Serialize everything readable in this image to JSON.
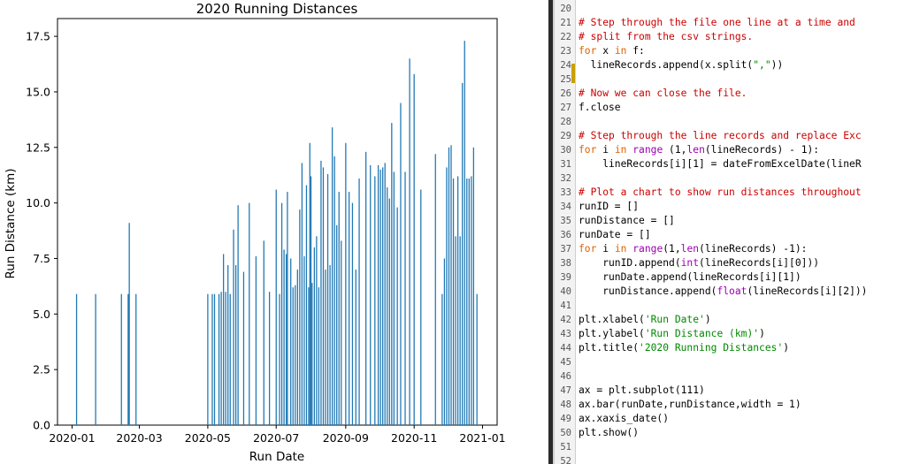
{
  "chart_data": {
    "type": "bar",
    "title": "2020 Running Distances",
    "xlabel": "Run Date",
    "ylabel": "Run Distance (km)",
    "xlim": [
      "2019-12-19",
      "2021-01-14"
    ],
    "ylim": [
      0,
      18.3
    ],
    "x_ticks": [
      "2020-01",
      "2020-03",
      "2020-05",
      "2020-07",
      "2020-09",
      "2020-11",
      "2021-01"
    ],
    "y_ticks": [
      "0.0",
      "2.5",
      "5.0",
      "7.5",
      "10.0",
      "12.5",
      "15.0",
      "17.5"
    ],
    "bar_color": "#1f77b4",
    "grid": false,
    "series": [
      {
        "x": [
          "2020-01-05",
          "2020-01-22",
          "2020-02-14",
          "2020-02-20",
          "2020-02-21",
          "2020-02-27",
          "2020-05-01",
          "2020-05-05",
          "2020-05-07",
          "2020-05-11",
          "2020-05-13",
          "2020-05-15",
          "2020-05-17",
          "2020-05-19",
          "2020-05-21",
          "2020-05-24",
          "2020-05-26",
          "2020-05-28",
          "2020-06-02",
          "2020-06-07",
          "2020-06-13",
          "2020-06-20",
          "2020-06-25",
          "2020-07-01",
          "2020-07-04",
          "2020-07-06",
          "2020-07-08",
          "2020-07-10",
          "2020-07-11",
          "2020-07-14",
          "2020-07-16",
          "2020-07-18",
          "2020-07-20",
          "2020-07-22",
          "2020-07-24",
          "2020-07-26",
          "2020-07-28",
          "2020-07-30",
          "2020-07-31",
          "2020-08-01",
          "2020-08-02",
          "2020-08-04",
          "2020-08-06",
          "2020-08-08",
          "2020-08-10",
          "2020-08-12",
          "2020-08-14",
          "2020-08-16",
          "2020-08-18",
          "2020-08-20",
          "2020-08-22",
          "2020-08-24",
          "2020-08-26",
          "2020-08-28",
          "2020-09-01",
          "2020-09-04",
          "2020-09-07",
          "2020-09-10",
          "2020-09-13",
          "2020-09-19",
          "2020-09-23",
          "2020-09-27",
          "2020-09-30",
          "2020-10-02",
          "2020-10-04",
          "2020-10-06",
          "2020-10-08",
          "2020-10-10",
          "2020-10-12",
          "2020-10-14",
          "2020-10-17",
          "2020-10-20",
          "2020-10-24",
          "2020-10-28",
          "2020-11-01",
          "2020-11-07",
          "2020-11-20",
          "2020-11-26",
          "2020-11-28",
          "2020-11-30",
          "2020-12-02",
          "2020-12-04",
          "2020-12-06",
          "2020-12-08",
          "2020-12-10",
          "2020-12-12",
          "2020-12-14",
          "2020-12-16",
          "2020-12-18",
          "2020-12-20",
          "2020-12-22",
          "2020-12-24",
          "2020-12-27"
        ],
        "values": [
          5.9,
          5.9,
          5.9,
          5.9,
          9.1,
          5.9,
          5.9,
          5.9,
          5.9,
          5.9,
          6.0,
          7.7,
          6.0,
          7.2,
          5.9,
          8.8,
          7.2,
          9.9,
          6.9,
          10.0,
          7.6,
          8.3,
          6.0,
          10.6,
          5.9,
          10.0,
          7.9,
          7.7,
          10.5,
          7.5,
          6.2,
          6.3,
          7.0,
          9.7,
          11.8,
          7.6,
          10.8,
          6.2,
          12.7,
          11.2,
          6.4,
          8.0,
          8.5,
          6.2,
          11.9,
          11.6,
          7.0,
          11.3,
          7.2,
          13.4,
          12.1,
          9.0,
          10.5,
          8.3,
          12.7,
          10.5,
          10.0,
          7.0,
          11.1,
          12.3,
          11.7,
          11.2,
          11.7,
          11.5,
          11.6,
          11.8,
          10.7,
          10.2,
          13.6,
          11.4,
          9.8,
          14.5,
          11.4,
          16.5,
          15.8,
          10.6,
          12.2,
          5.9,
          7.5,
          11.6,
          12.5,
          12.6,
          11.1,
          8.5,
          11.2,
          8.5,
          15.4,
          17.3,
          11.1,
          11.1,
          11.2,
          12.5,
          5.9
        ]
      }
    ]
  },
  "editor": {
    "lines": [
      {
        "n": "20",
        "tokens": []
      },
      {
        "n": "21",
        "tokens": [
          {
            "t": "# Step through the file one line at a time and",
            "c": "comment"
          }
        ]
      },
      {
        "n": "22",
        "tokens": [
          {
            "t": "# split from the csv strings.",
            "c": "comment"
          }
        ]
      },
      {
        "n": "23",
        "tokens": [
          {
            "t": "for",
            "c": "keyword"
          },
          {
            "t": " x "
          },
          {
            "t": "in",
            "c": "keyword"
          },
          {
            "t": " f:"
          }
        ]
      },
      {
        "n": "24",
        "tokens": [
          {
            "t": "  lineRecords.append(x.split("
          },
          {
            "t": "\",\"",
            "c": "string"
          },
          {
            "t": "))"
          }
        ]
      },
      {
        "n": "25",
        "tokens": []
      },
      {
        "n": "26",
        "tokens": [
          {
            "t": "# Now we can close the file.",
            "c": "comment"
          }
        ]
      },
      {
        "n": "27",
        "tokens": [
          {
            "t": "f.close"
          }
        ]
      },
      {
        "n": "28",
        "tokens": []
      },
      {
        "n": "29",
        "tokens": [
          {
            "t": "# Step through the line records and replace Exc",
            "c": "comment"
          }
        ]
      },
      {
        "n": "30",
        "tokens": [
          {
            "t": "for",
            "c": "keyword"
          },
          {
            "t": " i "
          },
          {
            "t": "in",
            "c": "keyword"
          },
          {
            "t": " "
          },
          {
            "t": "range",
            "c": "builtin"
          },
          {
            "t": " (1,"
          },
          {
            "t": "len",
            "c": "builtin"
          },
          {
            "t": "(lineRecords) - 1):"
          }
        ]
      },
      {
        "n": "31",
        "tokens": [
          {
            "t": "    lineRecords[i][1] = dateFromExcelDate(lineR"
          }
        ]
      },
      {
        "n": "32",
        "tokens": []
      },
      {
        "n": "33",
        "tokens": [
          {
            "t": "# Plot a chart to show run distances throughout",
            "c": "comment"
          }
        ]
      },
      {
        "n": "34",
        "tokens": [
          {
            "t": "runID = []"
          }
        ]
      },
      {
        "n": "35",
        "tokens": [
          {
            "t": "runDistance = []"
          }
        ]
      },
      {
        "n": "36",
        "tokens": [
          {
            "t": "runDate = []"
          }
        ]
      },
      {
        "n": "37",
        "tokens": [
          {
            "t": "for",
            "c": "keyword"
          },
          {
            "t": " i "
          },
          {
            "t": "in",
            "c": "keyword"
          },
          {
            "t": " "
          },
          {
            "t": "range",
            "c": "builtin"
          },
          {
            "t": "(1,"
          },
          {
            "t": "len",
            "c": "builtin"
          },
          {
            "t": "(lineRecords) -1):"
          }
        ]
      },
      {
        "n": "38",
        "tokens": [
          {
            "t": "    runID.append("
          },
          {
            "t": "int",
            "c": "builtin"
          },
          {
            "t": "(lineRecords[i][0]))"
          }
        ]
      },
      {
        "n": "39",
        "tokens": [
          {
            "t": "    runDate.append(lineRecords[i][1])"
          }
        ]
      },
      {
        "n": "40",
        "tokens": [
          {
            "t": "    runDistance.append("
          },
          {
            "t": "float",
            "c": "builtin"
          },
          {
            "t": "(lineRecords[i][2]))"
          }
        ]
      },
      {
        "n": "41",
        "tokens": []
      },
      {
        "n": "42",
        "tokens": [
          {
            "t": "plt.xlabel("
          },
          {
            "t": "'Run Date'",
            "c": "string"
          },
          {
            "t": ")"
          }
        ]
      },
      {
        "n": "43",
        "tokens": [
          {
            "t": "plt.ylabel("
          },
          {
            "t": "'Run Distance (km)'",
            "c": "string"
          },
          {
            "t": ")"
          }
        ]
      },
      {
        "n": "44",
        "tokens": [
          {
            "t": "plt.title("
          },
          {
            "t": "'2020 Running Distances'",
            "c": "string"
          },
          {
            "t": ")"
          }
        ]
      },
      {
        "n": "45",
        "tokens": []
      },
      {
        "n": "46",
        "tokens": []
      },
      {
        "n": "47",
        "tokens": [
          {
            "t": "ax = plt.subplot(111)"
          }
        ]
      },
      {
        "n": "48",
        "tokens": [
          {
            "t": "ax.bar(runDate,runDistance,width = 1)"
          }
        ]
      },
      {
        "n": "49",
        "tokens": [
          {
            "t": "ax.xaxis_date()"
          }
        ]
      },
      {
        "n": "50",
        "tokens": [
          {
            "t": "plt.show()"
          }
        ]
      },
      {
        "n": "51",
        "tokens": []
      },
      {
        "n": "52",
        "tokens": []
      }
    ]
  }
}
